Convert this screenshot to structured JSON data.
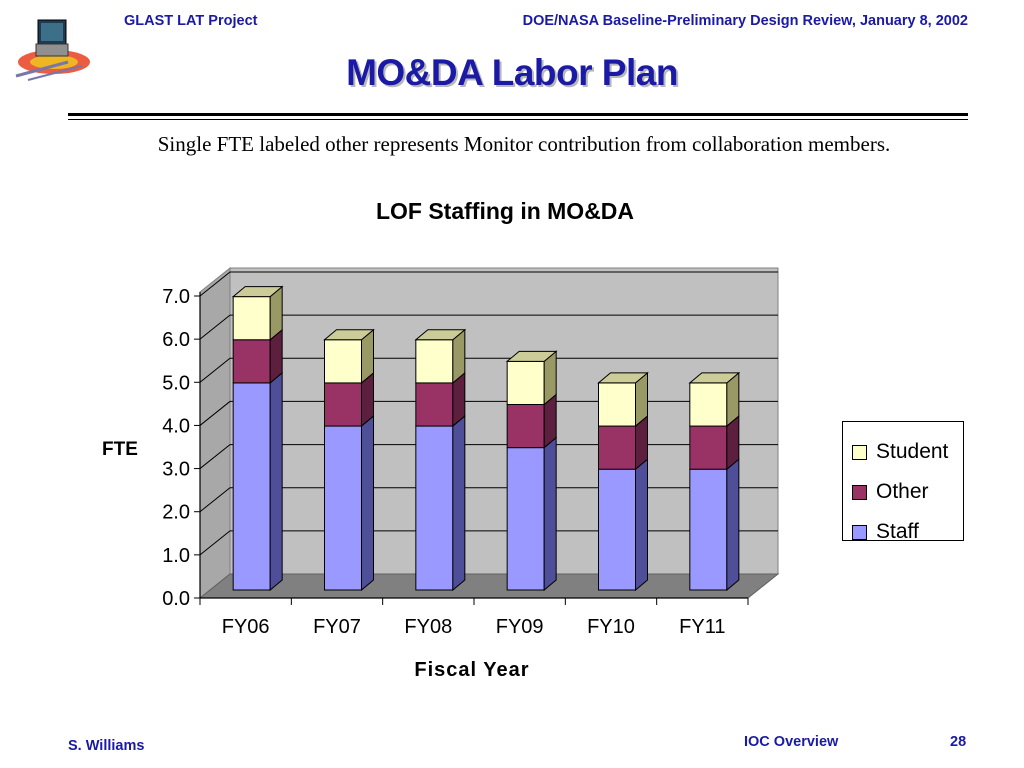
{
  "header": {
    "left": "GLAST LAT Project",
    "right": "DOE/NASA Baseline-Preliminary Design Review, January 8, 2002"
  },
  "slide": {
    "title": "MO&DA Labor Plan",
    "subtitle": "Single FTE labeled other represents Monitor contribution from collaboration members."
  },
  "chart_data": {
    "type": "bar",
    "stacked": true,
    "style": "3d",
    "title": "LOF Staffing in MO&DA",
    "xlabel": "Fiscal Year",
    "ylabel": "FTE",
    "categories": [
      "FY06",
      "FY07",
      "FY08",
      "FY09",
      "FY10",
      "FY11"
    ],
    "series": [
      {
        "name": "Staff",
        "values": [
          4.8,
          3.8,
          3.8,
          3.3,
          2.8,
          2.8
        ],
        "color": "#9999ff",
        "side_color": "#4f4f99",
        "top_color": "#ccccff"
      },
      {
        "name": "Other",
        "values": [
          1.0,
          1.0,
          1.0,
          1.0,
          1.0,
          1.0
        ],
        "color": "#993366",
        "side_color": "#5c1f3d",
        "top_color": "#c2859f"
      },
      {
        "name": "Student",
        "values": [
          1.0,
          1.0,
          1.0,
          1.0,
          1.0,
          1.0
        ],
        "color": "#ffffcc",
        "side_color": "#999966",
        "top_color": "#cccc99"
      }
    ],
    "ylim": [
      0,
      7
    ],
    "yticks": [
      "0.0",
      "1.0",
      "2.0",
      "3.0",
      "4.0",
      "5.0",
      "6.0",
      "7.0"
    ],
    "ytick_values": [
      0,
      1,
      2,
      3,
      4,
      5,
      6,
      7
    ],
    "grid": true,
    "legend_position": "right",
    "wall_color": "#c0c0c0",
    "floor_color": "#808080"
  },
  "footer": {
    "author": "S. Williams",
    "section": "IOC Overview",
    "page": "28"
  }
}
